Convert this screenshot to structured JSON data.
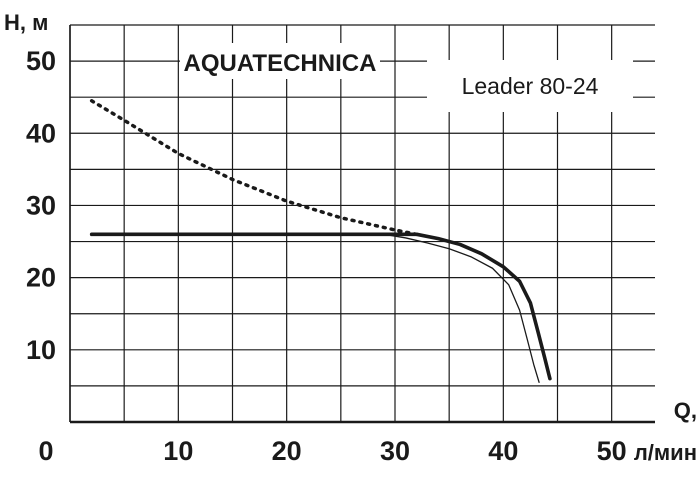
{
  "chart_data": {
    "type": "line",
    "brand_label": "AQUATECHNICA",
    "model_label": "Leader 80-24",
    "ylabel": "H, м",
    "xlabel": "Q, л/мин",
    "xlim": [
      0,
      54
    ],
    "ylim": [
      0,
      55
    ],
    "x_ticks": [
      0,
      10,
      20,
      30,
      40,
      50
    ],
    "x_tick_labels": [
      "0",
      "10",
      "20",
      "30",
      "40",
      "50"
    ],
    "y_ticks": [
      10,
      20,
      30,
      40,
      50
    ],
    "y_tick_labels": [
      "10",
      "20",
      "30",
      "40",
      "50"
    ],
    "grid": true,
    "series": [
      {
        "style": "dotted",
        "color": "#1a1a1a",
        "points": [
          [
            2,
            44.5
          ],
          [
            5,
            41.8
          ],
          [
            10,
            37.2
          ],
          [
            15,
            33.6
          ],
          [
            20,
            30.6
          ],
          [
            25,
            28.3
          ],
          [
            30,
            26.6
          ],
          [
            32,
            26.0
          ]
        ]
      },
      {
        "style": "thick",
        "color": "#1a1a1a",
        "points": [
          [
            2,
            26
          ],
          [
            10,
            26
          ],
          [
            20,
            26
          ],
          [
            30,
            26
          ],
          [
            32,
            26
          ],
          [
            34,
            25.4
          ],
          [
            36,
            24.6
          ],
          [
            38,
            23.3
          ],
          [
            40,
            21.5
          ],
          [
            41.5,
            19.5
          ],
          [
            42.5,
            16.5
          ],
          [
            43.2,
            12.5
          ],
          [
            43.8,
            9.0
          ],
          [
            44.3,
            6.0
          ]
        ]
      },
      {
        "style": "thin",
        "color": "#1a1a1a",
        "points": [
          [
            29,
            26
          ],
          [
            31,
            25.5
          ],
          [
            33,
            24.8
          ],
          [
            35,
            24.0
          ],
          [
            37,
            22.9
          ],
          [
            39,
            21.3
          ],
          [
            40.5,
            19.0
          ],
          [
            41.5,
            15.5
          ],
          [
            42.2,
            11.5
          ],
          [
            42.8,
            8.0
          ],
          [
            43.3,
            5.5
          ]
        ]
      }
    ]
  }
}
